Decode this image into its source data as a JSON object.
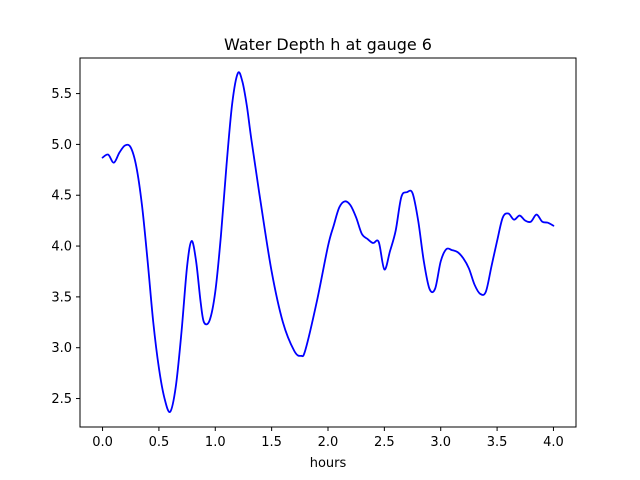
{
  "chart_data": {
    "type": "line",
    "title": "Water Depth h at gauge 6",
    "xlabel": "hours",
    "ylabel": "",
    "xlim": [
      -0.2,
      4.2
    ],
    "ylim": [
      2.22,
      5.85
    ],
    "xticks": [
      0.0,
      0.5,
      1.0,
      1.5,
      2.0,
      2.5,
      3.0,
      3.5,
      4.0
    ],
    "xtick_labels": [
      "0.0",
      "0.5",
      "1.0",
      "1.5",
      "2.0",
      "2.5",
      "3.0",
      "3.5",
      "4.0"
    ],
    "yticks": [
      2.5,
      3.0,
      3.5,
      4.0,
      4.5,
      5.0,
      5.5
    ],
    "ytick_labels": [
      "2.5",
      "3.0",
      "3.5",
      "4.0",
      "4.5",
      "5.0",
      "5.5"
    ],
    "grid": false,
    "series": [
      {
        "color": "#0000ff",
        "x": [
          0.0,
          0.05,
          0.1,
          0.15,
          0.2,
          0.25,
          0.3,
          0.35,
          0.4,
          0.45,
          0.5,
          0.55,
          0.6,
          0.65,
          0.7,
          0.75,
          0.79,
          0.83,
          0.87,
          0.9,
          0.95,
          1.0,
          1.05,
          1.1,
          1.15,
          1.2,
          1.24,
          1.28,
          1.32,
          1.4,
          1.5,
          1.6,
          1.7,
          1.76,
          1.8,
          1.9,
          2.0,
          2.05,
          2.1,
          2.15,
          2.2,
          2.25,
          2.3,
          2.35,
          2.4,
          2.45,
          2.5,
          2.55,
          2.6,
          2.65,
          2.7,
          2.75,
          2.8,
          2.85,
          2.9,
          2.95,
          3.0,
          3.05,
          3.1,
          3.15,
          3.2,
          3.25,
          3.3,
          3.35,
          3.4,
          3.45,
          3.5,
          3.55,
          3.6,
          3.65,
          3.7,
          3.75,
          3.8,
          3.85,
          3.9,
          3.95,
          4.0
        ],
        "y": [
          4.87,
          4.9,
          4.82,
          4.92,
          4.99,
          4.97,
          4.78,
          4.4,
          3.85,
          3.25,
          2.8,
          2.5,
          2.37,
          2.62,
          3.15,
          3.8,
          4.05,
          3.85,
          3.45,
          3.25,
          3.27,
          3.55,
          4.1,
          4.8,
          5.4,
          5.7,
          5.62,
          5.38,
          5.05,
          4.45,
          3.75,
          3.25,
          2.97,
          2.92,
          2.98,
          3.45,
          4.0,
          4.2,
          4.38,
          4.44,
          4.4,
          4.28,
          4.12,
          4.07,
          4.03,
          4.04,
          3.77,
          3.95,
          4.15,
          4.48,
          4.53,
          4.52,
          4.25,
          3.85,
          3.58,
          3.58,
          3.85,
          3.97,
          3.96,
          3.94,
          3.88,
          3.78,
          3.62,
          3.53,
          3.55,
          3.8,
          4.05,
          4.28,
          4.32,
          4.26,
          4.3,
          4.25,
          4.24,
          4.31,
          4.24,
          4.23,
          4.2
        ]
      }
    ]
  }
}
